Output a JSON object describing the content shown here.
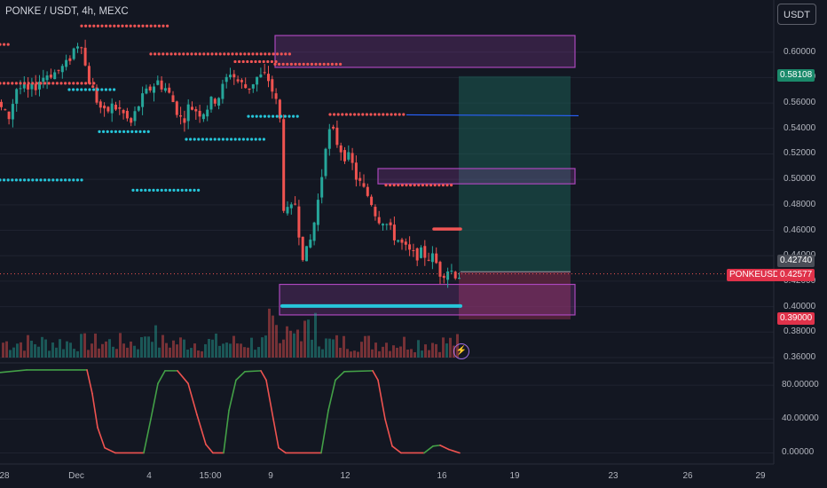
{
  "header": {
    "title": "PONKE / USDT, 4h, MEXC",
    "unit_button": "USDT"
  },
  "colors": {
    "background": "#131722",
    "up": "#26a69a",
    "down": "#ef5350",
    "level_red": "#f05454",
    "level_cyan": "#26c6da",
    "zone": "#ab47bc",
    "target": "#1c6b5e",
    "stop": "#7a2a4a",
    "line_blue": "#2962ff",
    "osc_up": "#43a047",
    "osc_down": "#ef5350"
  },
  "chart_data": {
    "type": "candlestick",
    "symbol": "PONKEUSDT",
    "interval": "4h",
    "exchange": "MEXC",
    "y_range": [
      0.36,
      0.62
    ],
    "y_ticks": [
      "0.60000",
      "0.58000",
      "0.56000",
      "0.54000",
      "0.52000",
      "0.50000",
      "0.48000",
      "0.46000",
      "0.44000",
      "0.42000",
      "0.40000",
      "0.38000",
      "0.36000"
    ],
    "x_ticks": [
      "28",
      "Dec",
      "4",
      "15:00",
      "9",
      "12",
      "16",
      "19",
      "23",
      "26",
      "29"
    ],
    "close_path": [
      [
        0,
        0.56
      ],
      [
        12,
        0.547
      ],
      [
        22,
        0.573
      ],
      [
        36,
        0.568
      ],
      [
        46,
        0.577
      ],
      [
        56,
        0.583
      ],
      [
        66,
        0.584
      ],
      [
        78,
        0.59
      ],
      [
        84,
        0.6
      ],
      [
        94,
        0.611
      ],
      [
        100,
        0.584
      ],
      [
        110,
        0.565
      ],
      [
        120,
        0.551
      ],
      [
        130,
        0.558
      ],
      [
        140,
        0.553
      ],
      [
        150,
        0.543
      ],
      [
        160,
        0.56
      ],
      [
        170,
        0.57
      ],
      [
        180,
        0.577
      ],
      [
        190,
        0.571
      ],
      [
        200,
        0.558
      ],
      [
        208,
        0.545
      ],
      [
        216,
        0.558
      ],
      [
        230,
        0.552
      ],
      [
        240,
        0.56
      ],
      [
        250,
        0.566
      ],
      [
        262,
        0.585
      ],
      [
        272,
        0.576
      ],
      [
        282,
        0.571
      ],
      [
        292,
        0.58
      ],
      [
        304,
        0.581
      ],
      [
        312,
        0.565
      ],
      [
        318,
        0.55
      ],
      [
        322,
        0.48
      ],
      [
        328,
        0.472
      ],
      [
        336,
        0.482
      ],
      [
        342,
        0.445
      ],
      [
        346,
        0.438
      ],
      [
        352,
        0.45
      ],
      [
        358,
        0.47
      ],
      [
        364,
        0.495
      ],
      [
        370,
        0.53
      ],
      [
        376,
        0.54
      ],
      [
        382,
        0.53
      ],
      [
        390,
        0.52
      ],
      [
        398,
        0.515
      ],
      [
        404,
        0.502
      ],
      [
        412,
        0.492
      ],
      [
        420,
        0.485
      ],
      [
        428,
        0.47
      ],
      [
        436,
        0.468
      ],
      [
        444,
        0.458
      ],
      [
        452,
        0.452
      ],
      [
        460,
        0.445
      ],
      [
        468,
        0.44
      ],
      [
        476,
        0.442
      ],
      [
        484,
        0.44
      ],
      [
        492,
        0.438
      ],
      [
        500,
        0.425
      ],
      [
        506,
        0.43
      ],
      [
        512,
        0.428
      ],
      [
        518,
        0.425
      ]
    ],
    "current_price": "0.42740",
    "last_price": "0.42577",
    "target_price": "0.58108",
    "stop_price": "0.39000",
    "price_tags": [
      "0.58108",
      "0.42740",
      "0.42577",
      "0.39000"
    ],
    "red_levels": [
      {
        "price": 0.6205,
        "from": 92,
        "to": 190
      },
      {
        "price": 0.606,
        "from": 0,
        "to": 12
      },
      {
        "price": 0.5985,
        "from": 170,
        "to": 330
      },
      {
        "price": 0.5905,
        "from": 310,
        "to": 388
      },
      {
        "price": 0.5925,
        "from": 265,
        "to": 315
      },
      {
        "price": 0.5755,
        "from": 0,
        "to": 108
      },
      {
        "price": 0.551,
        "from": 372,
        "to": 455
      },
      {
        "price": 0.4955,
        "from": 435,
        "to": 510
      }
    ],
    "cyan_levels": [
      {
        "price": 0.5705,
        "from": 78,
        "to": 132
      },
      {
        "price": 0.5495,
        "from": 280,
        "to": 336
      },
      {
        "price": 0.5375,
        "from": 112,
        "to": 168
      },
      {
        "price": 0.5315,
        "from": 210,
        "to": 300
      },
      {
        "price": 0.4995,
        "from": 0,
        "to": 95
      },
      {
        "price": 0.4915,
        "from": 150,
        "to": 228
      }
    ],
    "zones": [
      {
        "top": 0.613,
        "bottom": 0.588,
        "from": 310,
        "to": 648
      },
      {
        "top": 0.5085,
        "bottom": 0.4965,
        "from": 426,
        "to": 648
      },
      {
        "top": 0.4175,
        "bottom": 0.3935,
        "from": 315,
        "to": 648
      }
    ],
    "position": {
      "entry": 0.4274,
      "target": 0.58108,
      "stop": 0.39,
      "from": 517,
      "to": 643
    },
    "blue_line": {
      "price": 0.5507,
      "from": 458,
      "to": 652
    },
    "thick_cyan": {
      "price": 0.4005,
      "from": 318,
      "to": 519
    },
    "thick_red": {
      "price": 0.461,
      "from": 489,
      "to": 519
    },
    "volume_seed": 7,
    "indicator": {
      "range": [
        -10,
        100
      ],
      "ticks": [
        "80.00000",
        "40.00000",
        "0.00000"
      ],
      "path": [
        [
          0,
          95
        ],
        [
          30,
          98
        ],
        [
          98,
          98
        ],
        [
          104,
          70
        ],
        [
          110,
          30
        ],
        [
          118,
          6
        ],
        [
          130,
          0
        ],
        [
          162,
          0
        ],
        [
          170,
          40
        ],
        [
          178,
          82
        ],
        [
          186,
          97
        ],
        [
          200,
          97
        ],
        [
          212,
          82
        ],
        [
          222,
          45
        ],
        [
          232,
          10
        ],
        [
          240,
          0
        ],
        [
          252,
          0
        ],
        [
          258,
          50
        ],
        [
          266,
          86
        ],
        [
          276,
          96
        ],
        [
          294,
          97
        ],
        [
          300,
          86
        ],
        [
          308,
          40
        ],
        [
          314,
          6
        ],
        [
          322,
          0
        ],
        [
          362,
          0
        ],
        [
          370,
          50
        ],
        [
          378,
          86
        ],
        [
          388,
          96
        ],
        [
          420,
          97
        ],
        [
          426,
          86
        ],
        [
          434,
          40
        ],
        [
          442,
          8
        ],
        [
          452,
          0
        ],
        [
          478,
          0
        ],
        [
          488,
          8
        ],
        [
          496,
          9
        ],
        [
          506,
          4
        ],
        [
          518,
          0
        ]
      ]
    }
  }
}
